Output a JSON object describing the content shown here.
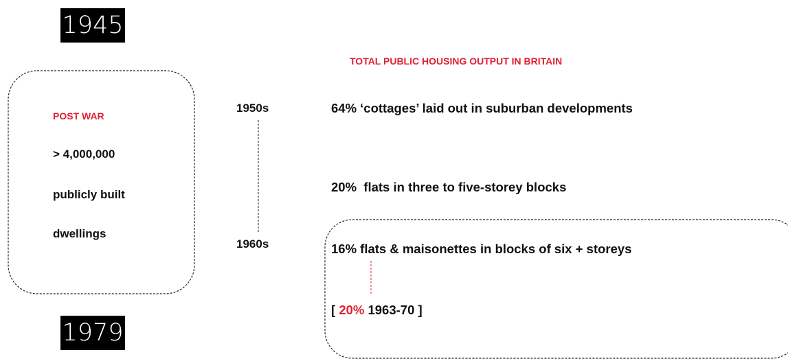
{
  "header": {
    "start_year": "1945",
    "end_year": "1979"
  },
  "summary": {
    "label": "POST WAR",
    "lines": [
      "> 4,000,000",
      "publicly built",
      "dwellings"
    ]
  },
  "timeline": {
    "start": "1950s",
    "end": "1960s"
  },
  "output": {
    "title": "TOTAL PUBLIC HOUSING OUTPUT IN BRITAIN",
    "items": [
      "64% ‘cottages’ laid out in suburban developments",
      "20%  flats in three to five-storey blocks",
      "16% flats & maisonettes in blocks of six + storeys"
    ],
    "note": {
      "open": "[",
      "share": "20%",
      "rest": "1963-70 ]"
    }
  }
}
